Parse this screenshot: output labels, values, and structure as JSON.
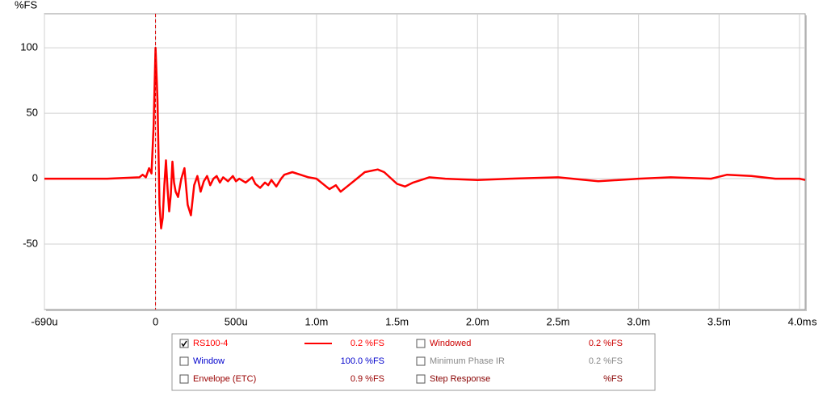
{
  "chart_data": {
    "type": "line",
    "y_label": "%FS",
    "x_label": "s",
    "x": [
      -0.69,
      -0.3,
      -0.1,
      -0.08,
      -0.06,
      -0.04,
      -0.025,
      -0.012,
      0,
      0.012,
      0.025,
      0.035,
      0.045,
      0.055,
      0.065,
      0.075,
      0.085,
      0.095,
      0.105,
      0.115,
      0.125,
      0.14,
      0.16,
      0.18,
      0.2,
      0.22,
      0.24,
      0.26,
      0.28,
      0.3,
      0.32,
      0.34,
      0.36,
      0.38,
      0.4,
      0.42,
      0.45,
      0.48,
      0.5,
      0.52,
      0.56,
      0.6,
      0.62,
      0.65,
      0.68,
      0.7,
      0.72,
      0.75,
      0.78,
      0.8,
      0.85,
      0.9,
      0.95,
      1.0,
      1.05,
      1.08,
      1.12,
      1.15,
      1.2,
      1.25,
      1.3,
      1.38,
      1.42,
      1.5,
      1.55,
      1.6,
      1.7,
      1.8,
      2.0,
      2.2,
      2.5,
      2.75,
      3.0,
      3.2,
      3.45,
      3.55,
      3.7,
      3.85,
      4.0,
      4.035
    ],
    "series": [
      {
        "name": "RS100-4",
        "color": "#ff0000",
        "readout": "0.2 %FS",
        "values": [
          0,
          0,
          1,
          3,
          1,
          8,
          4,
          40,
          100,
          60,
          -20,
          -38,
          -30,
          -5,
          14,
          -8,
          -25,
          -12,
          13,
          -3,
          -10,
          -14,
          0,
          8,
          -20,
          -28,
          -5,
          2,
          -10,
          -2,
          2,
          -5,
          0,
          2,
          -3,
          1,
          -2,
          2,
          -2,
          0,
          -3,
          1,
          -4,
          -7,
          -3,
          -5,
          -1,
          -6,
          0,
          3,
          5,
          3,
          1,
          0,
          -5,
          -8,
          -5,
          -10,
          -5,
          0,
          5,
          7,
          5,
          -4,
          -6,
          -3,
          1,
          0,
          -1,
          0,
          1,
          -2,
          0,
          1,
          0,
          3,
          2,
          0,
          0,
          -1
        ]
      }
    ],
    "cursor_x": 0,
    "xlim": [
      -0.69,
      4.035
    ],
    "ylim": [
      -100,
      126
    ],
    "xticks": [
      {
        "value": -0.69,
        "label": "-690u"
      },
      0,
      {
        "value": 0.5,
        "label": "500u"
      },
      {
        "value": 1.0,
        "label": "1.0m"
      },
      {
        "value": 1.5,
        "label": "1.5m"
      },
      {
        "value": 2.0,
        "label": "2.0m"
      },
      {
        "value": 2.5,
        "label": "2.5m"
      },
      {
        "value": 3.0,
        "label": "3.0m"
      },
      {
        "value": 3.5,
        "label": "3.5m"
      },
      {
        "value": 4.0,
        "label": "4.0m"
      }
    ],
    "yticks": [
      -50,
      0,
      50,
      100
    ],
    "grid": true
  },
  "panel": {
    "items": [
      {
        "name": "Window",
        "value": "100.0 %FS",
        "color": "#0000cc",
        "checked": false,
        "col": 0
      },
      {
        "name": "Envelope (ETC)",
        "value": "0.9 %FS",
        "color": "#990000",
        "checked": false,
        "col": 0
      },
      {
        "name": "Windowed",
        "value": "0.2 %FS",
        "color": "#cc0000",
        "checked": false,
        "col": 1
      },
      {
        "name": "Minimum Phase IR",
        "value": "0.2 %FS",
        "color": "#888888",
        "checked": false,
        "col": 1
      },
      {
        "name": "Step Response",
        "value": "%FS",
        "color": "#880000",
        "checked": false,
        "col": 1
      }
    ]
  }
}
